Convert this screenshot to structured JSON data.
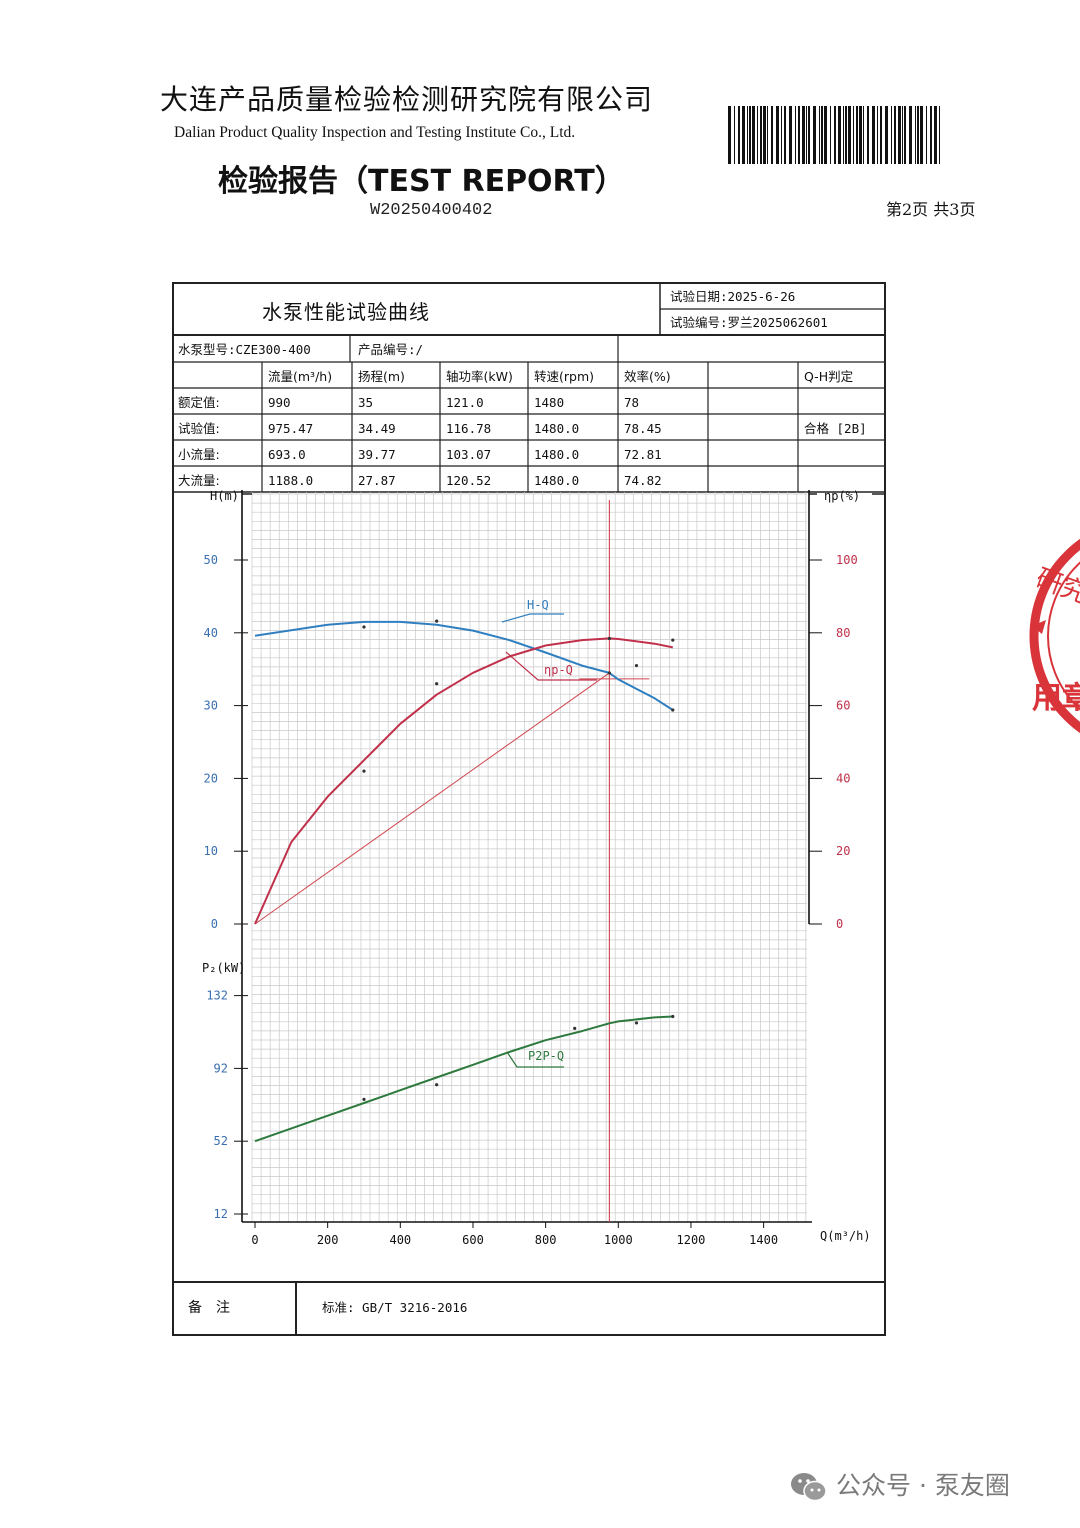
{
  "header": {
    "org_cn": "大连产品质量检验检测研究院有限公司",
    "org_en": "Dalian Product Quality Inspection and Testing Institute Co., Ltd.",
    "report_title": "检验报告（TEST REPORT）",
    "report_no": "W20250400402",
    "page": "第2页 共3页"
  },
  "sheet": {
    "title": "水泵性能试验曲线",
    "test_date": "试验日期:2025-6-26",
    "test_no": "试验编号:罗兰2025062601",
    "pump_model": "水泵型号:CZE300-400",
    "product_no": "产品编号:/",
    "columns": [
      "流量(m³/h)",
      "扬程(m)",
      "轴功率(kW)",
      "转速(rpm)",
      "效率(%)",
      "",
      "Q-H判定"
    ],
    "rows": [
      {
        "label": "额定值:",
        "values": [
          "990",
          "35",
          "121.0",
          "1480",
          "78",
          "",
          ""
        ]
      },
      {
        "label": "试验值:",
        "values": [
          "975.47",
          "34.49",
          "116.78",
          "1480.0",
          "78.45",
          "",
          "合格 [2B]"
        ]
      },
      {
        "label": "小流量:",
        "values": [
          "693.0",
          "39.77",
          "103.07",
          "1480.0",
          "72.81",
          "",
          ""
        ]
      },
      {
        "label": "大流量:",
        "values": [
          "1188.0",
          "27.87",
          "120.52",
          "1480.0",
          "74.82",
          "",
          ""
        ]
      }
    ],
    "remarks_label": "备　注",
    "standard": "标准:  GB/T 3216-2016"
  },
  "chart_data": {
    "type": "line",
    "x_axis": {
      "label": "Q(m³/h)",
      "range": [
        0,
        1500
      ],
      "ticks": [
        0,
        200,
        400,
        600,
        800,
        1000,
        1200,
        1400
      ]
    },
    "y_left_top": {
      "label": "H(m)",
      "range": [
        0,
        60
      ],
      "ticks": [
        0,
        10,
        20,
        30,
        40,
        50
      ]
    },
    "y_right": {
      "label": "ηp(%)",
      "range": [
        0,
        120
      ],
      "ticks": [
        0,
        20,
        40,
        60,
        80,
        100
      ]
    },
    "y_left_bottom": {
      "label": "P₂(kW)",
      "range": [
        12,
        132
      ],
      "ticks": [
        12,
        52,
        92,
        132
      ]
    },
    "grid": true,
    "series": [
      {
        "name": "H-Q",
        "color": "#2f7fc0",
        "axis": "H",
        "x": [
          0,
          200,
          300,
          400,
          500,
          600,
          700,
          800,
          900,
          975.47,
          1000,
          1100,
          1150
        ],
        "y": [
          39.6,
          41.1,
          41.5,
          41.5,
          41.1,
          40.3,
          39.0,
          37.3,
          35.5,
          34.49,
          33.6,
          31.0,
          29.4
        ]
      },
      {
        "name": "ηp-Q",
        "color": "#c0304a",
        "axis": "eta",
        "x": [
          0,
          100,
          200,
          300,
          400,
          500,
          600,
          700,
          800,
          900,
          975.47,
          1000,
          1100,
          1150
        ],
        "y": [
          0,
          22.5,
          35.0,
          45.0,
          55.0,
          63.0,
          69.0,
          73.5,
          76.5,
          78.0,
          78.45,
          78.3,
          77.0,
          76.0
        ]
      },
      {
        "name": "P2P-Q",
        "color": "#2e7a3e",
        "axis": "P",
        "x": [
          0,
          200,
          300,
          400,
          500,
          600,
          700,
          800,
          900,
          975.47,
          1000,
          1100,
          1150
        ],
        "y": [
          52.0,
          66.0,
          73.0,
          80.0,
          87.0,
          94.0,
          101.0,
          107.5,
          112.5,
          116.78,
          117.8,
          120.0,
          120.5
        ]
      }
    ],
    "points": {
      "H": [
        [
          300,
          40.8
        ],
        [
          500,
          41.6
        ],
        [
          975.47,
          34.49
        ],
        [
          1150,
          29.4
        ]
      ],
      "eta": [
        [
          300,
          42.0
        ],
        [
          500,
          66.0
        ],
        [
          975.47,
          78.45
        ],
        [
          1050,
          71.0
        ],
        [
          1150,
          78.0
        ]
      ],
      "P": [
        [
          300,
          75.0
        ],
        [
          500,
          83.0
        ],
        [
          880,
          114.0
        ],
        [
          1050,
          117.0
        ],
        [
          1150,
          120.5
        ]
      ]
    },
    "duty_point": {
      "Q": 975.47,
      "H": 34.49
    }
  },
  "stamp_text": "研究院 用章",
  "watermark": "公众号 · 泵友圈"
}
